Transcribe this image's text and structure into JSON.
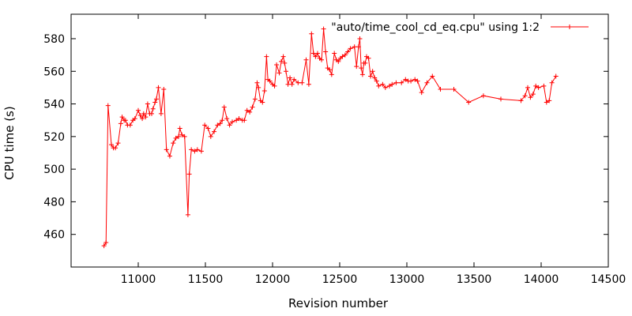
{
  "chart_data": {
    "type": "line",
    "xlabel": "Revision number",
    "ylabel": "CPU time (s)",
    "xlim": [
      10500,
      14500
    ],
    "ylim": [
      440,
      595
    ],
    "x_ticks": [
      11000,
      11500,
      12000,
      12500,
      13000,
      13500,
      14000,
      14500
    ],
    "y_ticks": [
      460,
      480,
      500,
      520,
      540,
      560,
      580
    ],
    "grid": false,
    "legend_position": "top-right",
    "colors": {
      "series": "#ff0000",
      "axis": "#000000"
    },
    "series": [
      {
        "name": "\"auto/time_cool_cd_eq.cpu\" using 1:2",
        "marker": "plus",
        "points": [
          [
            10745,
            453
          ],
          [
            10760,
            455
          ],
          [
            10775,
            539
          ],
          [
            10800,
            515
          ],
          [
            10815,
            513
          ],
          [
            10830,
            513
          ],
          [
            10850,
            516
          ],
          [
            10870,
            528
          ],
          [
            10880,
            532
          ],
          [
            10895,
            530
          ],
          [
            10905,
            530
          ],
          [
            10920,
            527
          ],
          [
            10940,
            527
          ],
          [
            10960,
            530
          ],
          [
            10975,
            531
          ],
          [
            11000,
            536
          ],
          [
            11015,
            533
          ],
          [
            11030,
            531
          ],
          [
            11040,
            534
          ],
          [
            11055,
            532
          ],
          [
            11070,
            540
          ],
          [
            11085,
            534
          ],
          [
            11100,
            534
          ],
          [
            11110,
            537
          ],
          [
            11125,
            541
          ],
          [
            11135,
            543
          ],
          [
            11150,
            550
          ],
          [
            11170,
            534
          ],
          [
            11190,
            549
          ],
          [
            11210,
            512
          ],
          [
            11235,
            508
          ],
          [
            11260,
            516
          ],
          [
            11280,
            519
          ],
          [
            11300,
            520
          ],
          [
            11310,
            525
          ],
          [
            11325,
            521
          ],
          [
            11345,
            520
          ],
          [
            11370,
            472
          ],
          [
            11380,
            497
          ],
          [
            11395,
            512
          ],
          [
            11420,
            511
          ],
          [
            11440,
            512
          ],
          [
            11470,
            511
          ],
          [
            11495,
            527
          ],
          [
            11520,
            525
          ],
          [
            11540,
            520
          ],
          [
            11565,
            523
          ],
          [
            11590,
            527
          ],
          [
            11610,
            528
          ],
          [
            11625,
            530
          ],
          [
            11640,
            538
          ],
          [
            11660,
            531
          ],
          [
            11680,
            527
          ],
          [
            11700,
            529
          ],
          [
            11730,
            530
          ],
          [
            11750,
            531
          ],
          [
            11775,
            530
          ],
          [
            11790,
            530
          ],
          [
            11810,
            536
          ],
          [
            11830,
            535
          ],
          [
            11850,
            538
          ],
          [
            11870,
            543
          ],
          [
            11885,
            553
          ],
          [
            11895,
            550
          ],
          [
            11910,
            542
          ],
          [
            11925,
            541
          ],
          [
            11940,
            548
          ],
          [
            11955,
            569
          ],
          [
            11965,
            555
          ],
          [
            11980,
            554
          ],
          [
            12000,
            552
          ],
          [
            12015,
            551
          ],
          [
            12030,
            564
          ],
          [
            12050,
            559
          ],
          [
            12065,
            566
          ],
          [
            12080,
            569
          ],
          [
            12090,
            565
          ],
          [
            12100,
            560
          ],
          [
            12115,
            552
          ],
          [
            12130,
            556
          ],
          [
            12145,
            552
          ],
          [
            12160,
            555
          ],
          [
            12190,
            553
          ],
          [
            12220,
            553
          ],
          [
            12250,
            567
          ],
          [
            12270,
            552
          ],
          [
            12290,
            583
          ],
          [
            12305,
            571
          ],
          [
            12320,
            569
          ],
          [
            12335,
            571
          ],
          [
            12350,
            568
          ],
          [
            12365,
            567
          ],
          [
            12380,
            586
          ],
          [
            12395,
            572
          ],
          [
            12410,
            562
          ],
          [
            12425,
            561
          ],
          [
            12440,
            558
          ],
          [
            12460,
            571
          ],
          [
            12475,
            567
          ],
          [
            12490,
            566
          ],
          [
            12505,
            568
          ],
          [
            12520,
            569
          ],
          [
            12540,
            570
          ],
          [
            12560,
            572
          ],
          [
            12580,
            574
          ],
          [
            12610,
            575
          ],
          [
            12625,
            563
          ],
          [
            12640,
            575
          ],
          [
            12650,
            580
          ],
          [
            12660,
            562
          ],
          [
            12670,
            558
          ],
          [
            12680,
            565
          ],
          [
            12690,
            565
          ],
          [
            12700,
            569
          ],
          [
            12715,
            568
          ],
          [
            12730,
            557
          ],
          [
            12745,
            560
          ],
          [
            12760,
            556
          ],
          [
            12775,
            554
          ],
          [
            12790,
            551
          ],
          [
            12820,
            552
          ],
          [
            12840,
            550
          ],
          [
            12870,
            551
          ],
          [
            12890,
            552
          ],
          [
            12920,
            553
          ],
          [
            12960,
            553
          ],
          [
            12990,
            555
          ],
          [
            13010,
            554
          ],
          [
            13030,
            554
          ],
          [
            13060,
            555
          ],
          [
            13080,
            554
          ],
          [
            13110,
            547
          ],
          [
            13150,
            553
          ],
          [
            13190,
            557
          ],
          [
            13250,
            549
          ],
          [
            13350,
            549
          ],
          [
            13460,
            541
          ],
          [
            13570,
            545
          ],
          [
            13700,
            543
          ],
          [
            13850,
            542
          ],
          [
            13880,
            545
          ],
          [
            13900,
            550
          ],
          [
            13920,
            544
          ],
          [
            13940,
            546
          ],
          [
            13960,
            551
          ],
          [
            13980,
            550
          ],
          [
            14020,
            551
          ],
          [
            14040,
            541
          ],
          [
            14060,
            542
          ],
          [
            14080,
            553
          ],
          [
            14110,
            557
          ]
        ]
      }
    ]
  }
}
